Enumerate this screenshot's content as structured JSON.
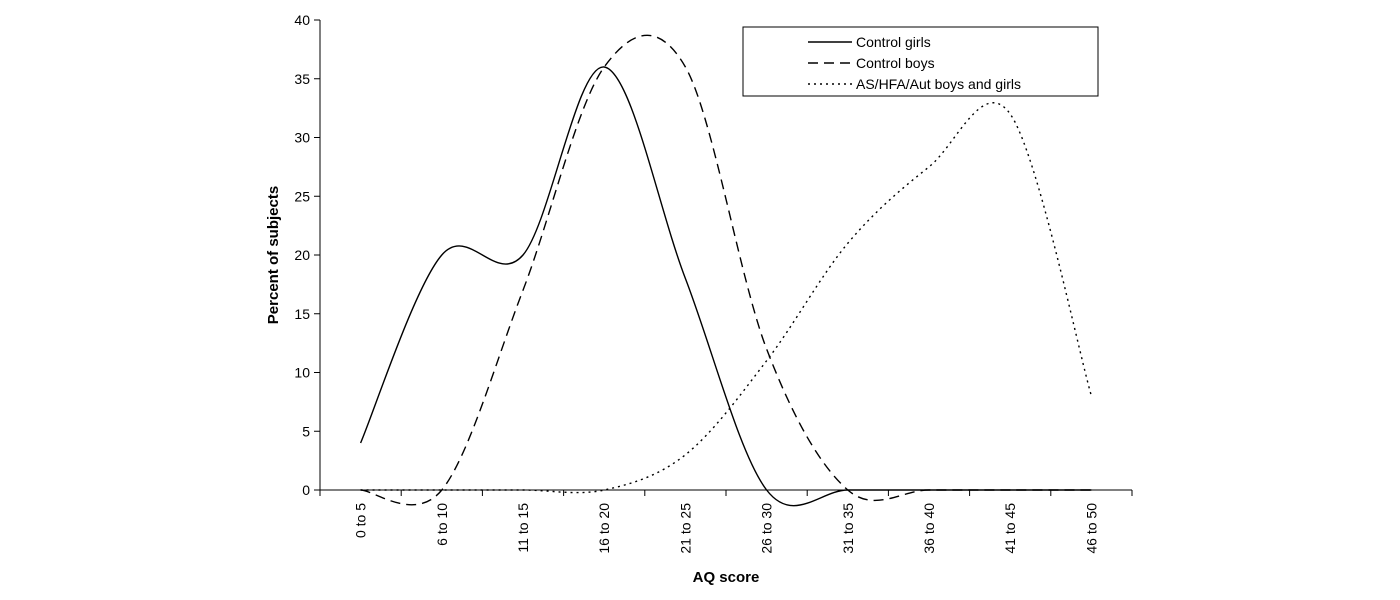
{
  "chart_data": {
    "type": "line",
    "title": "",
    "xlabel": "AQ score",
    "ylabel": "Percent of subjects",
    "ylim": [
      0,
      40
    ],
    "yticks": [
      0,
      5,
      10,
      15,
      20,
      25,
      30,
      35,
      40
    ],
    "categories": [
      "0 to 5",
      "6 to 10",
      "11 to 15",
      "16 to 20",
      "21 to 25",
      "26 to 30",
      "31 to 35",
      "36 to 40",
      "41 to 45",
      "46 to 50"
    ],
    "grid": false,
    "legend_position": "top-right",
    "series": [
      {
        "name": "Control girls",
        "style": "solid",
        "values": [
          4,
          20,
          20,
          36,
          18,
          0,
          0,
          0,
          0,
          0
        ]
      },
      {
        "name": "Control boys",
        "style": "dashed",
        "values": [
          0,
          0,
          17,
          36,
          36,
          12,
          0,
          0,
          0,
          0
        ]
      },
      {
        "name": "AS/HFA/Aut boys and girls",
        "style": "dotted",
        "values": [
          0,
          0,
          0,
          0,
          3,
          11,
          21,
          27.5,
          32,
          8
        ]
      }
    ]
  }
}
